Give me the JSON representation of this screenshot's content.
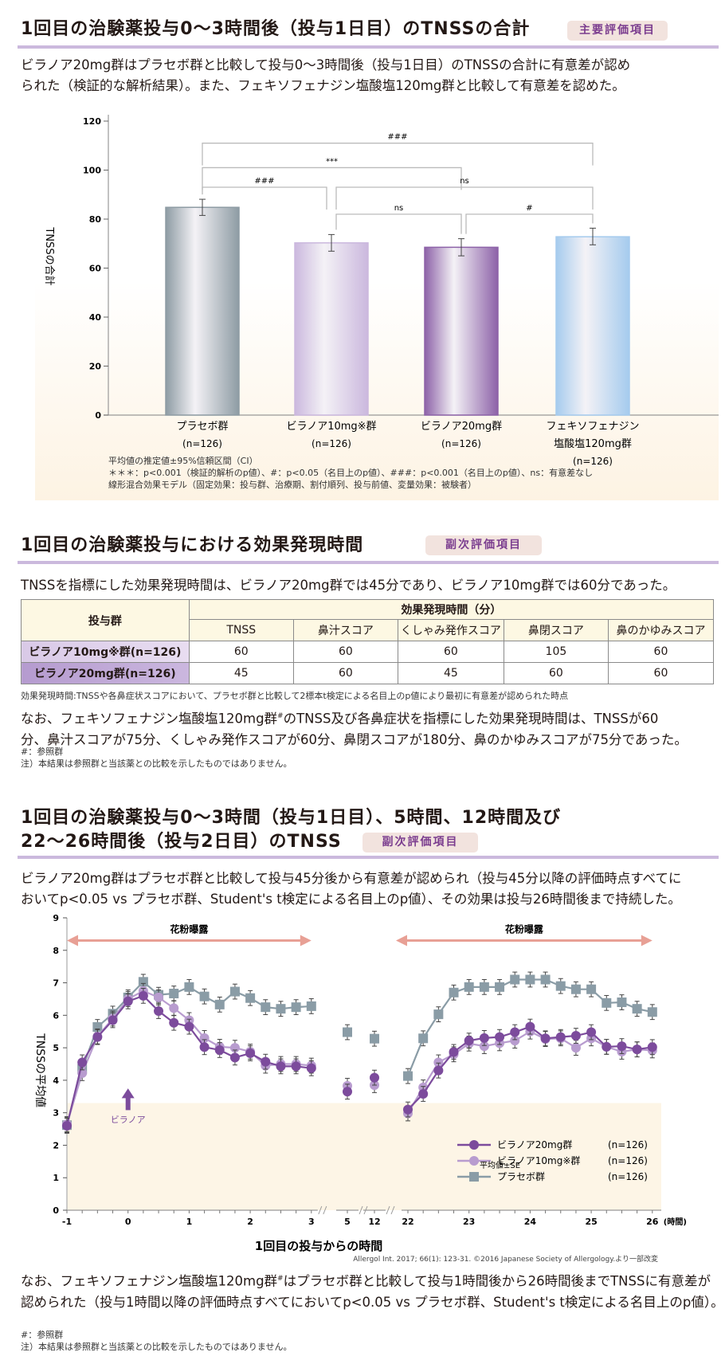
{
  "section1": {
    "title": "1回目の治験薬投与0～3時間後（投与1日目）のTNSSの合計",
    "badge": "主要評価項目",
    "para": [
      "ビラノア20mg群はプラセボ群と比較して投与0～3時間後（投与1日目）のTNSSの合計に有意差が認め",
      "られた（検証的な解析結果）。また、フェキソフェナジン塩酸塩120mg群と比較して有意差を認めた。"
    ],
    "notes": [
      "平均値の推定値±95%信頼区間（CI）",
      "＊＊＊：p<0.001（検証的解析のp値）、#：p<0.05（名目上のp値）、###：p<0.001（名目上のp値）、ns：有意差なし",
      "線形混合効果モデル（固定効果：投与群、治療期、割付順列、投与前値、変量効果：被験者）"
    ]
  },
  "chart_data": [
    {
      "type": "bar",
      "ylabel": "TNSSの合計",
      "ylim": [
        0,
        120
      ],
      "yticks": [
        0,
        20,
        40,
        60,
        80,
        100,
        120
      ],
      "categories": [
        {
          "lines": [
            "プラセボ群"
          ],
          "n": "(n=126)"
        },
        {
          "lines": [
            "ビラノア10mg※群"
          ],
          "n": "(n=126)"
        },
        {
          "lines": [
            "ビラノア20mg群"
          ],
          "n": "(n=126)"
        },
        {
          "lines": [
            "フェキソフェナジン",
            "塩酸塩120mg群"
          ],
          "n": "(n=126)"
        }
      ],
      "values": [
        84.8,
        70.3,
        68.5,
        72.8
      ],
      "ci_low": [
        81.5,
        66.9,
        65.0,
        69.5
      ],
      "ci_high": [
        88.1,
        73.7,
        72.0,
        76.3
      ],
      "colors": [
        "#8e9ca4",
        "#cbb8de",
        "#8d62a8",
        "#a5cbee"
      ],
      "comparisons": [
        {
          "from": 0,
          "to": 3,
          "level": 111,
          "label": "###"
        },
        {
          "from": 0,
          "to": 2,
          "level": 101,
          "label": "***"
        },
        {
          "from": 0,
          "to": 1,
          "level": 93,
          "label": "###"
        },
        {
          "from": 1,
          "to": 3,
          "level": 93,
          "label": "ns"
        },
        {
          "from": 1,
          "to": 2,
          "level": 82,
          "label": "ns"
        },
        {
          "from": 2,
          "to": 3,
          "level": 82,
          "label": "#"
        }
      ],
      "grid": false
    },
    {
      "type": "line",
      "ylabel": "TNSSの平均値",
      "xlabel": "1回目の投与からの時間",
      "x_unit": "(時間)",
      "ylim": [
        0,
        9
      ],
      "yticks": [
        0,
        1,
        2,
        3,
        4,
        5,
        6,
        7,
        8,
        9
      ],
      "xtick_labels": [
        "-1",
        "0",
        "1",
        "2",
        "3",
        "5",
        "12",
        "22",
        "23",
        "24",
        "25",
        "26"
      ],
      "x": [
        -1,
        -0.75,
        -0.5,
        -0.25,
        0,
        0.25,
        0.5,
        0.75,
        1,
        1.25,
        1.5,
        1.75,
        2,
        2.25,
        2.5,
        2.75,
        3,
        5,
        12,
        22,
        22.25,
        22.5,
        22.75,
        23,
        23.25,
        23.5,
        23.75,
        24,
        24.25,
        24.5,
        24.75,
        25,
        25.25,
        25.5,
        25.75,
        26
      ],
      "series": [
        {
          "name": "プラセボ群",
          "n": "(n=126)",
          "marker": "square",
          "color": "#8a9ca6",
          "values": [
            2.62,
            4.35,
            5.64,
            6.05,
            6.55,
            7.03,
            6.63,
            6.67,
            6.87,
            6.58,
            6.33,
            6.73,
            6.53,
            6.25,
            6.2,
            6.25,
            6.28,
            5.48,
            5.28,
            4.13,
            5.29,
            6.03,
            6.7,
            6.87,
            6.87,
            6.87,
            7.1,
            7.1,
            7.1,
            6.9,
            6.8,
            6.8,
            6.38,
            6.4,
            6.2,
            6.1
          ]
        },
        {
          "name": "ビラノア10mg※群",
          "n": "(n=126)",
          "marker": "circle",
          "color": "#b89ccf",
          "values": [
            2.65,
            4.22,
            5.35,
            5.9,
            6.5,
            6.75,
            6.55,
            6.22,
            5.85,
            5.3,
            5.03,
            5.0,
            4.88,
            4.45,
            4.5,
            4.5,
            4.45,
            3.83,
            3.85,
            2.98,
            3.78,
            4.55,
            4.8,
            5.13,
            5.05,
            5.14,
            5.22,
            5.5,
            5.27,
            5.29,
            5.0,
            5.29,
            5.03,
            4.88,
            4.95,
            4.92
          ]
        },
        {
          "name": "ビラノア20mg群",
          "n": "(n=126)",
          "marker": "circle",
          "color": "#7c4b9c",
          "values": [
            2.6,
            4.55,
            5.33,
            5.85,
            6.43,
            6.6,
            6.13,
            5.77,
            5.65,
            5.02,
            4.93,
            4.7,
            4.83,
            4.57,
            4.43,
            4.43,
            4.37,
            3.65,
            4.08,
            3.1,
            3.58,
            4.3,
            4.87,
            5.22,
            5.3,
            5.33,
            5.48,
            5.65,
            5.29,
            5.33,
            5.37,
            5.48,
            5.03,
            5.05,
            4.95,
            5.02
          ]
        }
      ],
      "legend_order": [
        2,
        1,
        0
      ],
      "legend_position": "bottom-right",
      "error_note": "平均値±SE",
      "exposure_label": "花粉曝露",
      "dose_label": "ビラノア",
      "arrow_color": "#e8a095",
      "grid": false
    }
  ],
  "section2": {
    "title": "1回目の治験薬投与における効果発現時間",
    "badge": "副次評価項目",
    "para": "TNSSを指標にした効果発現時間は、ビラノア20mg群では45分であり、ビラノア10mg群では60分であった。",
    "table": {
      "group_header": "投与群",
      "span_header": "効果発現時間（分）",
      "columns": [
        "TNSS",
        "鼻汁スコア",
        "くしゃみ発作スコア",
        "鼻閉スコア",
        "鼻のかゆみスコア"
      ],
      "rows": [
        {
          "group": "ビラノア10mg※群(n=126)",
          "values": [
            "60",
            "60",
            "60",
            "105",
            "60"
          ]
        },
        {
          "group": "ビラノア20mg群(n=126)",
          "values": [
            "45",
            "60",
            "45",
            "60",
            "60"
          ]
        }
      ]
    },
    "note": "効果発現時間:TNSSや各鼻症状スコアにおいて、プラセボ群と比較して2標本t検定による名目上のp値により最初に有意差が認められた時点",
    "para2_a": "なお、フェキソフェナジン塩酸塩120mg群",
    "para2_sup": "#",
    "para2_b": "のTNSS及び各鼻症状を指標にした効果発現時間は、TNSSが60",
    "para2_line2": "分、鼻汁スコアが75分、くしゃみ発作スコアが60分、鼻閉スコアが180分、鼻のかゆみスコアが75分であった。",
    "footnotes": [
      "#：参照群",
      "注）本結果は参照群と当該薬との比較を示したものではありません。"
    ]
  },
  "section3": {
    "title": [
      "1回目の治験薬投与0～3時間（投与1日目）、5時間、12時間及び",
      "22～26時間後（投与2日目）のTNSS"
    ],
    "badge": "副次評価項目",
    "para": [
      "ビラノア20mg群はプラセボ群と比較して投与45分後から有意差が認められ（投与45分以降の評価時点すべてに",
      "おいてp<0.05 vs プラセボ群、Student's t検定による名目上のp値）、その効果は投与26時間後まで持続した。"
    ],
    "citation": "Allergol Int. 2017; 66(1): 123-31. ©2016 Japanese Society of Allergology.より一部改変",
    "para2_a": "なお、フェキソフェナジン塩酸塩120mg群",
    "para2_sup": "#",
    "para2_b": "はプラセボ群と比較して投与1時間後から26時間後までTNSSに有意差が",
    "para2_line2": "認められた（投与1時間以降の評価時点すべてにおいてp<0.05 vs プラセボ群、Student's t検定による名目上のp値）。",
    "footnotes": [
      "#：参照群",
      "注）本結果は参照群と当該薬との比較を示したものではありません。"
    ]
  }
}
